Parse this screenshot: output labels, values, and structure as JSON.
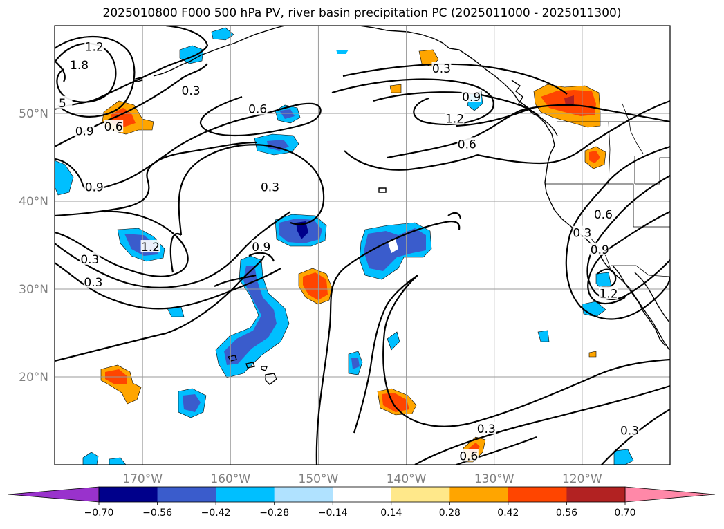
{
  "title": "2025010800 F000 500 hPa PV, river basin precipitation PC (2025011000 - 2025011300)",
  "map": {
    "lon_range": [
      -180,
      -110
    ],
    "lat_range": [
      10,
      60
    ],
    "lon_ticks": [
      {
        "lon": -170,
        "label": "170°W"
      },
      {
        "lon": -160,
        "label": "160°W"
      },
      {
        "lon": -150,
        "label": "150°W"
      },
      {
        "lon": -140,
        "label": "140°W"
      },
      {
        "lon": -130,
        "label": "130°W"
      },
      {
        "lon": -120,
        "label": "120°W"
      }
    ],
    "lat_ticks": [
      {
        "lat": 20,
        "label": "20°N"
      },
      {
        "lat": 30,
        "label": "30°N"
      },
      {
        "lat": 40,
        "label": "40°N"
      },
      {
        "lat": 50,
        "label": "50°N"
      }
    ],
    "grid": true
  },
  "colorbar": {
    "orientation": "horizontal",
    "extend": "both",
    "tick_labels": [
      "−0.70",
      "−0.56",
      "−0.42",
      "−0.28",
      "−0.14",
      "0.14",
      "0.28",
      "0.42",
      "0.56",
      "0.70"
    ],
    "under_color": "#9932cc",
    "over_color": "#ff88a8",
    "colors": [
      "#00008b",
      "#3a5ccc",
      "#00bfff",
      "#b0e2ff",
      "#ffffff",
      "#ffe88a",
      "#ffa500",
      "#ff4500",
      "#b22222"
    ]
  },
  "contour_labels": [
    {
      "text": "1.2",
      "lon": -175.5,
      "lat": 57.6
    },
    {
      "text": "1.8",
      "lon": -177.2,
      "lat": 55.5
    },
    {
      "text": "5",
      "lon": -179.1,
      "lat": 51.2
    },
    {
      "text": "0.9",
      "lon": -176.6,
      "lat": 48.0
    },
    {
      "text": "0.6",
      "lon": -173.3,
      "lat": 48.5
    },
    {
      "text": "0.3",
      "lon": -164.5,
      "lat": 52.6
    },
    {
      "text": "0.6",
      "lon": -156.9,
      "lat": 50.5
    },
    {
      "text": "0.9",
      "lon": -175.5,
      "lat": 41.6
    },
    {
      "text": "0.3",
      "lon": -155.5,
      "lat": 41.6
    },
    {
      "text": "1.2",
      "lon": -169.1,
      "lat": 34.8
    },
    {
      "text": "0.9",
      "lon": -156.5,
      "lat": 34.8
    },
    {
      "text": "0.3",
      "lon": -176.0,
      "lat": 33.4
    },
    {
      "text": "0.3",
      "lon": -175.6,
      "lat": 30.8
    },
    {
      "text": "0.3",
      "lon": -136.0,
      "lat": 55.1
    },
    {
      "text": "0.9",
      "lon": -132.6,
      "lat": 51.9
    },
    {
      "text": "1.2",
      "lon": -134.5,
      "lat": 49.4
    },
    {
      "text": "0.6",
      "lon": -133.1,
      "lat": 46.5
    },
    {
      "text": "0.6",
      "lon": -117.6,
      "lat": 38.5
    },
    {
      "text": "0.3",
      "lon": -120.0,
      "lat": 36.4
    },
    {
      "text": "0.9",
      "lon": -118.0,
      "lat": 34.5
    },
    {
      "text": "1.2",
      "lon": -117.0,
      "lat": 29.5
    },
    {
      "text": "0.3",
      "lon": -130.9,
      "lat": 14.1
    },
    {
      "text": "0.6",
      "lon": -132.9,
      "lat": 11.0
    },
    {
      "text": "0.3",
      "lon": -114.6,
      "lat": 13.9
    }
  ]
}
